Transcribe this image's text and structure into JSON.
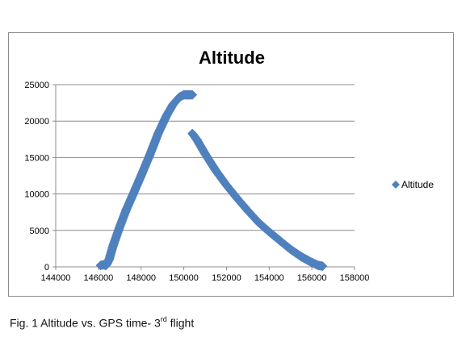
{
  "chart_data": {
    "type": "scatter",
    "title": "Altitude",
    "xlabel": "",
    "ylabel": "",
    "xlim": [
      144000,
      158000
    ],
    "ylim": [
      0,
      25000
    ],
    "x_ticks": [
      "144000",
      "146000",
      "148000",
      "150000",
      "152000",
      "154000",
      "156000",
      "158000"
    ],
    "y_ticks": [
      "0",
      "5000",
      "10000",
      "15000",
      "20000",
      "25000"
    ],
    "grid": "horizontal",
    "legend_position": "right",
    "series": [
      {
        "name": "Altitude",
        "color": "#4f81bd",
        "marker": "diamond",
        "segments": [
          {
            "x": [
              146100,
              146250,
              146350,
              146400,
              146500,
              146700,
              147000,
              147300,
              147600,
              148000,
              148400,
              148800,
              149200,
              149500,
              149800,
              150000,
              150100,
              150200,
              150400
            ],
            "y": [
              200,
              300,
              200,
              400,
              1000,
              3000,
              5500,
              7800,
              9800,
              12500,
              15300,
              18300,
              20800,
              22300,
              23300,
              23600,
              23600,
              23600,
              23600
            ]
          },
          {
            "x": [
              150400,
              150600,
              151000,
              151500,
              152000,
              152500,
              153000,
              153500,
              154000,
              154500,
              155000,
              155500,
              156000,
              156300,
              156500
            ],
            "y": [
              18300,
              17500,
              15500,
              13200,
              11200,
              9400,
              7700,
              6100,
              4800,
              3600,
              2400,
              1400,
              600,
              200,
              100
            ]
          }
        ]
      }
    ]
  },
  "caption": {
    "prefix": "Fig. 1 Altitude vs. GPS time- 3",
    "sup": "rd",
    "suffix": " flight"
  }
}
